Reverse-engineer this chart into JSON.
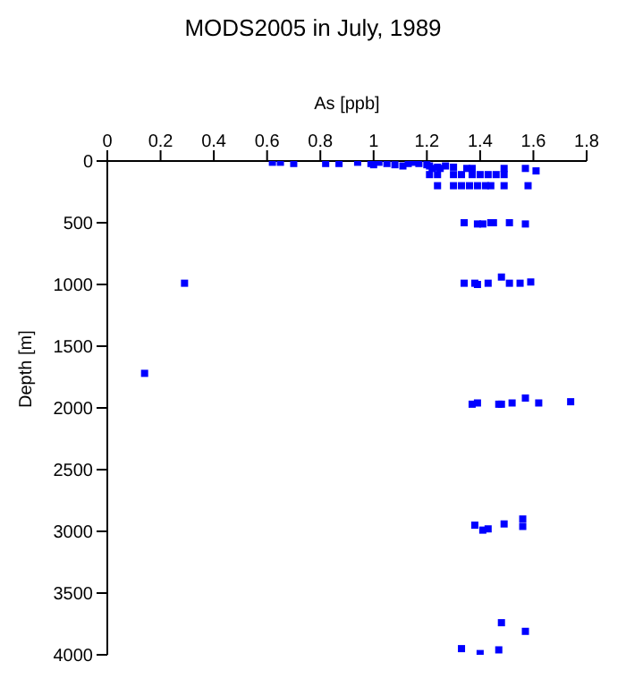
{
  "chart_data": {
    "type": "scatter",
    "title": "MODS2005 in July, 1989",
    "xlabel": "As [ppb]",
    "ylabel": "Depth [m]",
    "marker": "square",
    "xlim": [
      0,
      1.8
    ],
    "xticks": [
      0,
      0.2,
      0.4,
      0.6,
      0.8,
      1,
      1.2,
      1.4,
      1.6,
      1.8
    ],
    "ylim": [
      4000,
      0
    ],
    "yticks": [
      0,
      500,
      1000,
      1500,
      2000,
      2500,
      3000,
      3500,
      4000
    ],
    "series": [
      {
        "color": "#0000ff",
        "x": [
          0.62,
          0.65,
          0.7,
          0.82,
          0.87,
          0.94,
          0.99,
          1.0,
          1.02,
          1.05,
          1.08,
          1.11,
          1.13,
          1.15,
          1.17,
          1.2,
          1.21,
          1.24,
          1.27,
          1.3,
          1.22,
          1.25,
          1.35,
          1.37,
          1.49,
          1.57,
          1.61,
          1.21,
          1.24,
          1.3,
          1.33,
          1.37,
          1.4,
          1.43,
          1.46,
          1.49,
          1.24,
          1.3,
          1.33,
          1.36,
          1.39,
          1.42,
          1.44,
          1.49,
          1.58,
          1.34,
          1.39,
          1.41,
          1.44,
          1.45,
          1.51,
          1.57,
          0.29,
          1.34,
          1.38,
          1.39,
          1.43,
          1.48,
          1.51,
          1.55,
          1.59,
          0.14,
          1.37,
          1.39,
          1.47,
          1.48,
          1.52,
          1.57,
          1.62,
          1.74,
          1.38,
          1.41,
          1.43,
          1.49,
          1.56,
          1.56,
          1.48,
          1.57,
          1.33,
          1.4,
          1.47
        ],
        "values": [
          10,
          10,
          20,
          20,
          20,
          10,
          20,
          30,
          10,
          20,
          30,
          40,
          20,
          10,
          20,
          30,
          40,
          50,
          40,
          50,
          60,
          60,
          60,
          60,
          60,
          60,
          80,
          110,
          110,
          110,
          110,
          110,
          110,
          110,
          110,
          110,
          200,
          200,
          200,
          200,
          200,
          200,
          200,
          200,
          200,
          500,
          510,
          510,
          500,
          500,
          500,
          510,
          990,
          990,
          990,
          1000,
          990,
          940,
          990,
          990,
          980,
          1720,
          1970,
          1960,
          1970,
          1970,
          1960,
          1920,
          1960,
          1950,
          2950,
          2990,
          2980,
          2940,
          2900,
          2960,
          3740,
          3810,
          3950,
          3990,
          3960
        ]
      }
    ]
  }
}
